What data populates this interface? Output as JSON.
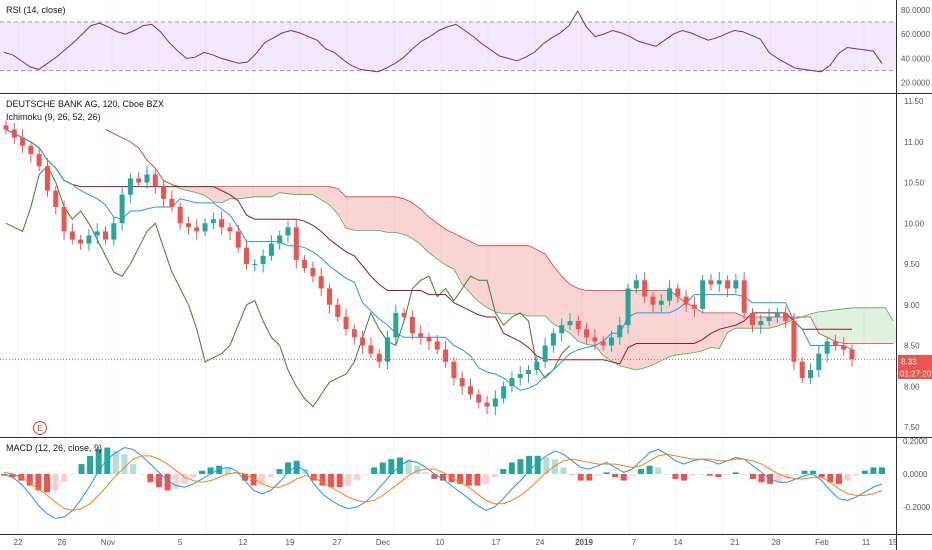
{
  "colors": {
    "up": "#26a69a",
    "down": "#ef5350",
    "tenkan": "#2196f3",
    "kijun": "#8e1c2b",
    "chikou": "#4c7a2a",
    "spanA": "#4caf50",
    "spanB": "#e53935",
    "cloudUp": "rgba(76,175,80,0.18)",
    "cloudDown": "rgba(229,57,53,0.22)",
    "rsi": "#7e2c8a",
    "rsiBand": "rgba(153,84,255,0.13)",
    "macd": "#2196f3",
    "signal": "#ff7f0e",
    "priceLine": "#ef5350"
  },
  "rsi": {
    "title": "RSI (14, close)",
    "axis": [
      "80.0000",
      "60.0000",
      "40.0000",
      "20.0000"
    ],
    "upper": 70,
    "lower": 30,
    "values": [
      45,
      43,
      38,
      33,
      31,
      36,
      41,
      47,
      53,
      60,
      67,
      69,
      66,
      62,
      60,
      63,
      67,
      68,
      62,
      53,
      46,
      40,
      41,
      45,
      43,
      40,
      38,
      36,
      37,
      44,
      53,
      57,
      61,
      63,
      61,
      58,
      55,
      48,
      45,
      39,
      34,
      31,
      30,
      29,
      32,
      36,
      41,
      48,
      54,
      58,
      63,
      66,
      68,
      63,
      58,
      52,
      47,
      42,
      40,
      38,
      41,
      45,
      52,
      57,
      61,
      67,
      79,
      66,
      58,
      60,
      63,
      61,
      58,
      54,
      52,
      50,
      55,
      60,
      63,
      61,
      58,
      55,
      57,
      60,
      63,
      62,
      59,
      56,
      45,
      40,
      36,
      32,
      31,
      30,
      29,
      34,
      44,
      49,
      48,
      47,
      46,
      36
    ],
    "value_label": ""
  },
  "price": {
    "title": "DEUTSCHE BANK AG, 120, Cboe BZX",
    "indicator_label": "Ichimoku (9, 26, 52, 26)",
    "axis": [
      "11.50",
      "11.00",
      "10.50",
      "10.00",
      "9.50",
      "9.00",
      "8.50",
      "8.00",
      "7.50"
    ],
    "last_price": "8.33",
    "countdown": "01:27:20",
    "earnings_marker": "E",
    "closes": [
      11.15,
      11.05,
      10.95,
      10.85,
      10.7,
      10.4,
      10.2,
      9.9,
      9.8,
      9.75,
      9.85,
      9.9,
      9.8,
      10.0,
      10.35,
      10.55,
      10.5,
      10.6,
      10.45,
      10.3,
      10.2,
      10.0,
      9.95,
      9.9,
      10.0,
      10.05,
      9.95,
      9.9,
      9.7,
      9.5,
      9.5,
      9.6,
      9.75,
      9.85,
      9.95,
      9.55,
      9.45,
      9.35,
      9.2,
      9.0,
      8.85,
      8.7,
      8.6,
      8.5,
      8.4,
      8.3,
      8.6,
      8.9,
      8.85,
      8.65,
      8.6,
      8.55,
      8.45,
      8.3,
      8.1,
      8.0,
      7.9,
      7.8,
      7.75,
      7.85,
      8.0,
      8.1,
      8.15,
      8.2,
      8.3,
      8.5,
      8.65,
      8.75,
      8.8,
      8.7,
      8.6,
      8.55,
      8.5,
      8.6,
      8.75,
      9.2,
      9.3,
      9.1,
      9.0,
      9.05,
      9.2,
      9.1,
      9.0,
      8.95,
      9.3,
      9.25,
      9.3,
      9.2,
      9.3,
      8.9,
      8.75,
      8.8,
      8.85,
      8.9,
      8.8,
      8.3,
      8.1,
      8.2,
      8.4,
      8.55,
      8.5,
      8.45,
      8.33
    ],
    "chikou": [
      10.0,
      9.95,
      9.9,
      10.2,
      10.6,
      10.7,
      10.5,
      10.2,
      10.05,
      10.15,
      10.0,
      9.8,
      9.6,
      9.4,
      9.35,
      9.5,
      9.7,
      9.9,
      10.0,
      9.7,
      9.4,
      9.2,
      9.0,
      8.7,
      8.3,
      8.35,
      8.4,
      8.5,
      8.75,
      9.0,
      9.05,
      8.8,
      8.6,
      8.5,
      8.2,
      8.0,
      7.85,
      7.75,
      7.9,
      8.05,
      8.1,
      8.15,
      8.3,
      8.6,
      8.9,
      8.7,
      8.55,
      8.5,
      8.8,
      9.2,
      9.3,
      9.35,
      9.1,
      9.2,
      9.05,
      9.2,
      9.35,
      9.3,
      9.3,
      8.9,
      8.75,
      8.85,
      8.9,
      8.8,
      8.25,
      8.1,
      8.2,
      8.4,
      8.5
    ],
    "date_labels": [
      "22",
      "26",
      "Nov",
      "5",
      "12",
      "19",
      "27",
      "Dec",
      "10",
      "17",
      "24",
      "2019",
      "7",
      "14",
      "21",
      "28",
      "Feb",
      "11",
      "15"
    ]
  },
  "macd": {
    "title": "MACD (12, 26, close, 9)",
    "axis": [
      "0.2000",
      "0.0000",
      "-0.2000"
    ],
    "macd_line": [
      0.0,
      -0.02,
      -0.06,
      -0.12,
      -0.19,
      -0.24,
      -0.27,
      -0.26,
      -0.22,
      -0.15,
      -0.07,
      0.02,
      0.09,
      0.13,
      0.16,
      0.15,
      0.11,
      0.06,
      0.01,
      -0.04,
      -0.07,
      -0.08,
      -0.06,
      -0.03,
      0.0,
      0.03,
      0.04,
      0.02,
      -0.04,
      -0.1,
      -0.12,
      -0.1,
      -0.05,
      0.01,
      0.05,
      0.02,
      -0.06,
      -0.12,
      -0.16,
      -0.19,
      -0.21,
      -0.2,
      -0.17,
      -0.12,
      -0.06,
      0.0,
      0.05,
      0.08,
      0.07,
      0.04,
      0.0,
      -0.03,
      -0.07,
      -0.11,
      -0.15,
      -0.19,
      -0.22,
      -0.2,
      -0.15,
      -0.09,
      -0.04,
      0.02,
      0.07,
      0.11,
      0.14,
      0.12,
      0.08,
      0.04,
      0.03,
      0.05,
      0.07,
      0.04,
      0.01,
      0.03,
      0.08,
      0.13,
      0.15,
      0.12,
      0.08,
      0.06,
      0.08,
      0.09,
      0.08,
      0.06,
      0.08,
      0.1,
      0.09,
      0.05,
      0.01,
      -0.03,
      -0.05,
      -0.05,
      -0.03,
      -0.01,
      0.0,
      -0.04,
      -0.1,
      -0.15,
      -0.16,
      -0.14,
      -0.11,
      -0.08,
      -0.06
    ],
    "signal_line": [
      0.01,
      0.0,
      -0.02,
      -0.05,
      -0.09,
      -0.13,
      -0.17,
      -0.21,
      -0.22,
      -0.21,
      -0.18,
      -0.13,
      -0.07,
      -0.01,
      0.04,
      0.09,
      0.11,
      0.11,
      0.09,
      0.06,
      0.02,
      -0.02,
      -0.04,
      -0.05,
      -0.04,
      -0.02,
      0.0,
      0.01,
      0.0,
      -0.03,
      -0.06,
      -0.08,
      -0.08,
      -0.06,
      -0.03,
      -0.01,
      -0.02,
      -0.05,
      -0.08,
      -0.11,
      -0.14,
      -0.16,
      -0.17,
      -0.16,
      -0.13,
      -0.09,
      -0.05,
      -0.01,
      0.02,
      0.03,
      0.03,
      0.01,
      -0.02,
      -0.05,
      -0.08,
      -0.12,
      -0.16,
      -0.18,
      -0.18,
      -0.16,
      -0.13,
      -0.09,
      -0.04,
      0.01,
      0.05,
      0.08,
      0.09,
      0.08,
      0.07,
      0.06,
      0.06,
      0.06,
      0.05,
      0.04,
      0.05,
      0.08,
      0.11,
      0.12,
      0.11,
      0.1,
      0.09,
      0.09,
      0.09,
      0.08,
      0.08,
      0.09,
      0.09,
      0.08,
      0.06,
      0.03,
      0.0,
      -0.02,
      -0.03,
      -0.03,
      -0.02,
      -0.02,
      -0.05,
      -0.09,
      -0.12,
      -0.13,
      -0.13,
      -0.12,
      -0.1
    ]
  }
}
